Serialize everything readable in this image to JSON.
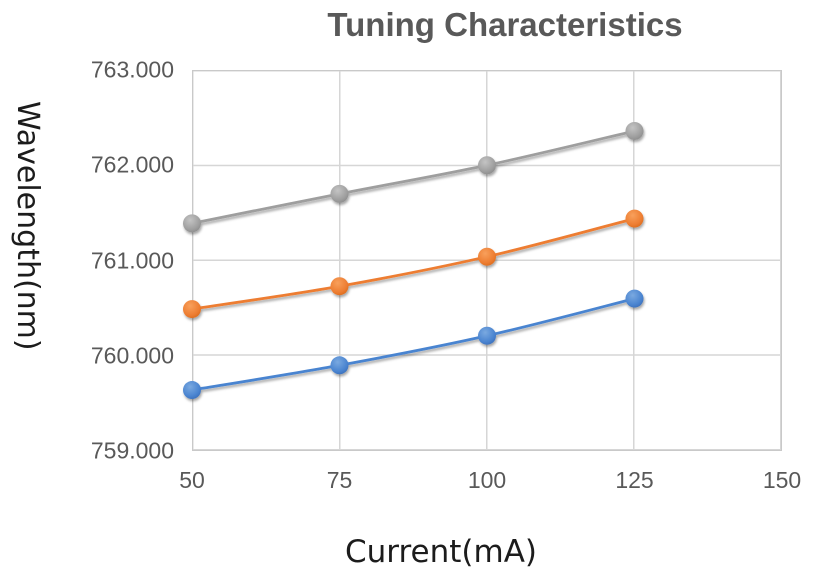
{
  "chart": {
    "title": "Tuning Characteristics",
    "x_axis": {
      "label": "Current(mA)",
      "ticks": [
        "50",
        "75",
        "100",
        "125",
        "150"
      ]
    },
    "y_axis": {
      "label": "Wavelength(nm)",
      "ticks": [
        "763.000",
        "762.000",
        "761.000",
        "760.000",
        "759.000"
      ]
    }
  },
  "colors": {
    "title_text": "#595959",
    "tick_text": "#595959",
    "axis_title_text": "#1c1c1c",
    "gridline": "#d6d6d6",
    "plot_border": "#c9c9c9",
    "series_blue": "#4A84D0",
    "series_orange": "#ED7D31",
    "series_gray": "#9E9E9E"
  },
  "chart_data": {
    "type": "line",
    "title": "Tuning Characteristics",
    "xlabel": "Current(mA)",
    "ylabel": "Wavelength(nm)",
    "x": [
      50,
      75,
      100,
      125
    ],
    "xlim": [
      50,
      150
    ],
    "ylim": [
      759,
      763
    ],
    "x_ticks": [
      50,
      75,
      100,
      125,
      150
    ],
    "y_ticks": [
      759,
      760,
      761,
      762,
      763
    ],
    "grid": true,
    "legend_position": "none",
    "marker": "circle",
    "marker_radius_px": 9,
    "series": [
      {
        "name": "blue",
        "color": "#4A84D0",
        "marker_light": "#7AA9E0",
        "marker_dark": "#3A6DB8",
        "values": [
          759.64,
          759.9,
          760.21,
          760.6
        ]
      },
      {
        "name": "orange",
        "color": "#ED7D31",
        "marker_light": "#F8A05C",
        "marker_dark": "#D96A1C",
        "values": [
          760.49,
          760.73,
          761.04,
          761.44
        ]
      },
      {
        "name": "gray",
        "color": "#9E9E9E",
        "marker_light": "#C4C4C4",
        "marker_dark": "#8A8A8A",
        "values": [
          761.39,
          761.7,
          762.0,
          762.36
        ]
      }
    ]
  }
}
